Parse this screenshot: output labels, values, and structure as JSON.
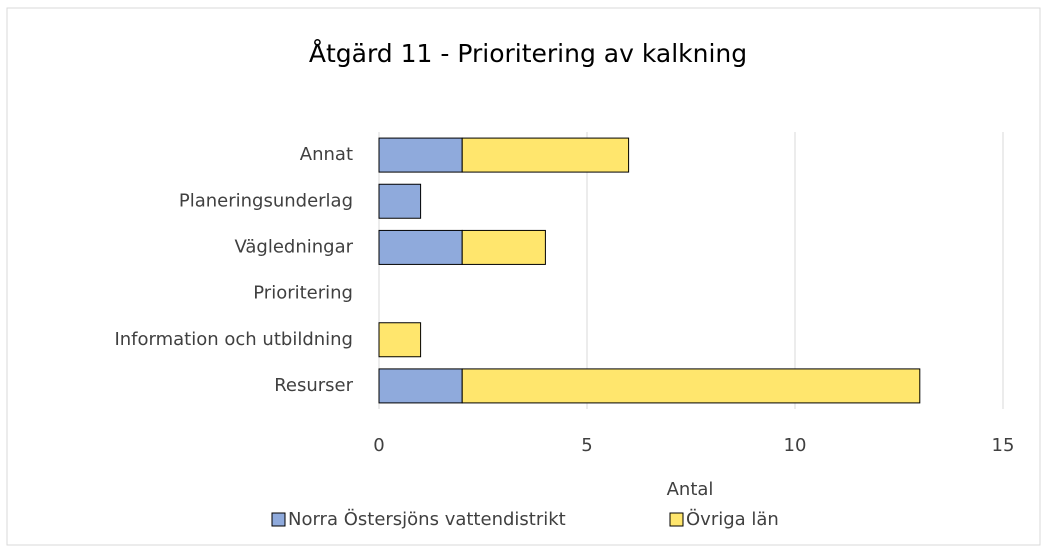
{
  "chart_data": {
    "type": "bar",
    "orientation": "horizontal",
    "stacked": true,
    "title": "Åtgärd 11 - Prioritering av kalkning",
    "xlabel": "Antal",
    "categories": [
      "Annat",
      "Planeringsunderlag",
      "Vägledningar",
      "Prioritering",
      "Information och utbildning",
      "Resurser"
    ],
    "series": [
      {
        "name": "Norra Östersjöns vattendistrikt",
        "color": "#8faadc",
        "values": [
          2,
          1,
          2,
          0,
          0,
          2
        ]
      },
      {
        "name": "Övriga län",
        "color": "#ffe66d",
        "values": [
          4,
          0,
          2,
          0,
          1,
          11
        ]
      }
    ],
    "xlim": [
      0,
      15
    ],
    "xticks": [
      0,
      5,
      10,
      15
    ],
    "grid": true,
    "legend": "bottom"
  }
}
